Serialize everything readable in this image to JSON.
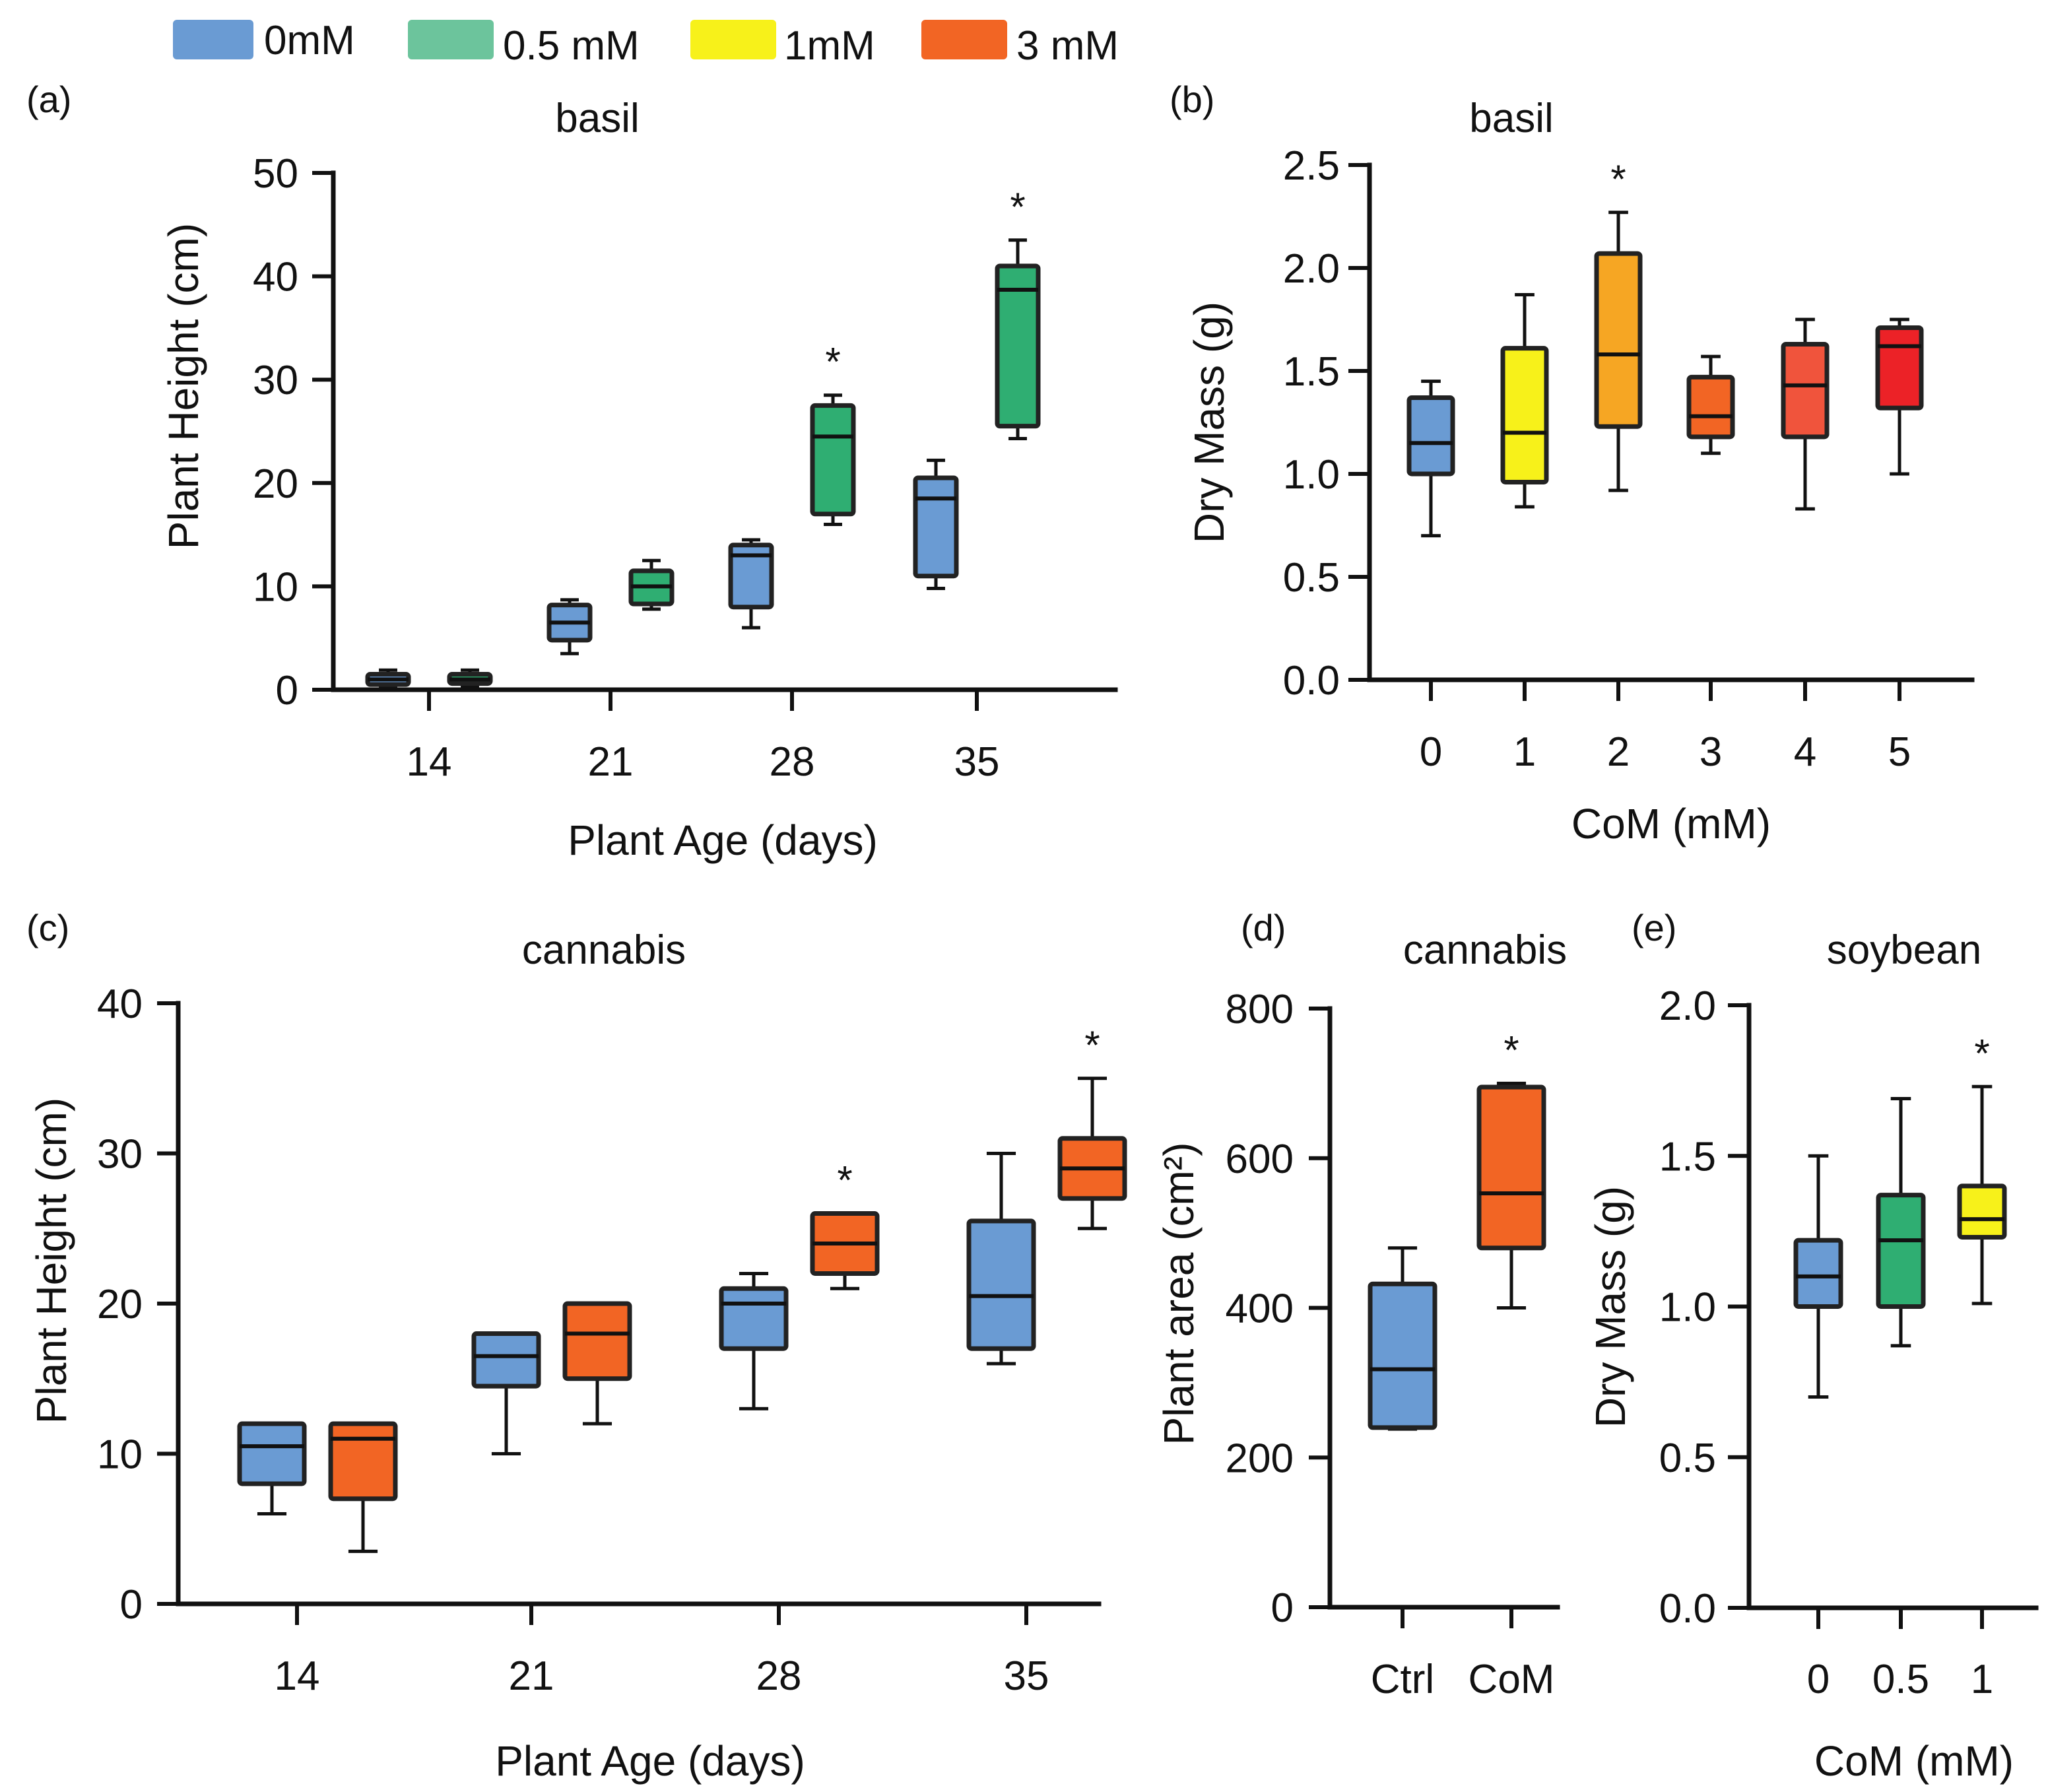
{
  "legend": {
    "items": [
      {
        "label": "0mM",
        "color": "#6a9bd3"
      },
      {
        "label": "0.5 mM",
        "color": "#6cc49c"
      },
      {
        "label": "1mM",
        "color": "#f7f11a"
      },
      {
        "label": "3 mM",
        "color": "#f26524"
      }
    ]
  },
  "chart_data": [
    {
      "panel": "(a)",
      "type": "box",
      "title": "basil",
      "xlabel": "Plant Age (days)",
      "ylabel": "Plant Height (cm)",
      "ylim": [
        0,
        50
      ],
      "yticks": [
        0,
        10,
        20,
        30,
        40,
        50
      ],
      "ytick_labels": [
        "0",
        "10",
        "20",
        "30",
        "40",
        "50"
      ],
      "categories": [
        "14",
        "21",
        "28",
        "35"
      ],
      "series_colors": [
        "#6a9bd3",
        "#2fae72"
      ],
      "boxes": [
        {
          "group": 0,
          "series": 0,
          "min": 0.2,
          "q1": 0.5,
          "median": 1.0,
          "q3": 1.5,
          "max": 1.9
        },
        {
          "group": 0,
          "series": 1,
          "min": 0.3,
          "q1": 0.6,
          "median": 1.0,
          "q3": 1.5,
          "max": 1.9
        },
        {
          "group": 1,
          "series": 0,
          "min": 3.5,
          "q1": 4.8,
          "median": 6.5,
          "q3": 8.2,
          "max": 8.7
        },
        {
          "group": 1,
          "series": 1,
          "min": 7.8,
          "q1": 8.3,
          "median": 10.0,
          "q3": 11.5,
          "max": 12.5
        },
        {
          "group": 2,
          "series": 0,
          "min": 6.0,
          "q1": 8.0,
          "median": 13.0,
          "q3": 14.0,
          "max": 14.5
        },
        {
          "group": 2,
          "series": 1,
          "min": 16.0,
          "q1": 17.0,
          "median": 24.5,
          "q3": 27.5,
          "max": 28.5,
          "star": "*"
        },
        {
          "group": 3,
          "series": 0,
          "min": 9.8,
          "q1": 11.0,
          "median": 18.5,
          "q3": 20.5,
          "max": 22.2
        },
        {
          "group": 3,
          "series": 1,
          "min": 24.3,
          "q1": 25.5,
          "median": 38.7,
          "q3": 41.0,
          "max": 43.5,
          "star": "*"
        }
      ]
    },
    {
      "panel": "(b)",
      "type": "box",
      "title": "basil",
      "xlabel": "CoM (mM)",
      "ylabel": "Dry Mass (g)",
      "ylim": [
        0,
        2.5
      ],
      "yticks": [
        0,
        0.5,
        1.0,
        1.5,
        2.0,
        2.5
      ],
      "ytick_labels": [
        "0.0",
        "0.5",
        "1.0",
        "1.5",
        "2.0",
        "2.5"
      ],
      "categories": [
        "0",
        "1",
        "2",
        "3",
        "4",
        "5"
      ],
      "series_colors": [
        "#6a9bd3"
      ],
      "boxes": [
        {
          "group": 0,
          "color": "#6a9bd3",
          "min": 0.7,
          "q1": 1.0,
          "median": 1.15,
          "q3": 1.37,
          "max": 1.45
        },
        {
          "group": 1,
          "color": "#f7f11a",
          "min": 0.84,
          "q1": 0.96,
          "median": 1.2,
          "q3": 1.61,
          "max": 1.87
        },
        {
          "group": 2,
          "color": "#f6a623",
          "min": 0.92,
          "q1": 1.23,
          "median": 1.58,
          "q3": 2.07,
          "max": 2.27,
          "star": "*"
        },
        {
          "group": 3,
          "color": "#f26524",
          "min": 1.1,
          "q1": 1.18,
          "median": 1.28,
          "q3": 1.47,
          "max": 1.57
        },
        {
          "group": 4,
          "color": "#f0543c",
          "min": 0.83,
          "q1": 1.18,
          "median": 1.43,
          "q3": 1.63,
          "max": 1.75
        },
        {
          "group": 5,
          "color": "#ec2227",
          "min": 1.0,
          "q1": 1.32,
          "median": 1.62,
          "q3": 1.71,
          "max": 1.75
        }
      ]
    },
    {
      "panel": "(c)",
      "type": "box",
      "title": "cannabis",
      "xlabel": "Plant Age (days)",
      "ylabel": "Plant Height (cm)",
      "ylim": [
        0,
        40
      ],
      "yticks": [
        0,
        10,
        20,
        30,
        40
      ],
      "ytick_labels": [
        "0",
        "10",
        "20",
        "30",
        "40"
      ],
      "categories": [
        "14",
        "21",
        "28",
        "35"
      ],
      "series_colors": [
        "#6a9bd3",
        "#f26524"
      ],
      "boxes": [
        {
          "group": 0,
          "series": 0,
          "min": 6.0,
          "q1": 8.0,
          "median": 10.5,
          "q3": 12.0,
          "max": 12.0
        },
        {
          "group": 0,
          "series": 1,
          "min": 3.5,
          "q1": 7.0,
          "median": 11.0,
          "q3": 12.0,
          "max": 12.0
        },
        {
          "group": 1,
          "series": 0,
          "min": 10.0,
          "q1": 14.5,
          "median": 16.5,
          "q3": 18.0,
          "max": 18.0
        },
        {
          "group": 1,
          "series": 1,
          "min": 12.0,
          "q1": 15.0,
          "median": 18.0,
          "q3": 20.0,
          "max": 20.0
        },
        {
          "group": 2,
          "series": 0,
          "min": 13.0,
          "q1": 17.0,
          "median": 20.0,
          "q3": 21.0,
          "max": 22.0
        },
        {
          "group": 2,
          "series": 1,
          "min": 21.0,
          "q1": 22.0,
          "median": 24.0,
          "q3": 26.0,
          "max": 26.0,
          "star": "*"
        },
        {
          "group": 3,
          "series": 0,
          "min": 16.0,
          "q1": 17.0,
          "median": 20.5,
          "q3": 25.5,
          "max": 30.0
        },
        {
          "group": 3,
          "series": 1,
          "min": 25.0,
          "q1": 27.0,
          "median": 29.0,
          "q3": 31.0,
          "max": 35.0,
          "star": "*"
        }
      ]
    },
    {
      "panel": "(d)",
      "type": "box",
      "title": "cannabis",
      "xlabel": "",
      "ylabel": "Plant area (cm²)",
      "ylim": [
        0,
        800
      ],
      "yticks": [
        0,
        200,
        400,
        600,
        800
      ],
      "ytick_labels": [
        "0",
        "200",
        "400",
        "600",
        "800"
      ],
      "categories": [
        "Ctrl",
        "CoM"
      ],
      "boxes": [
        {
          "group": 0,
          "color": "#6a9bd3",
          "min": 238,
          "q1": 240,
          "median": 318,
          "q3": 432,
          "max": 480
        },
        {
          "group": 1,
          "color": "#f26524",
          "min": 400,
          "q1": 480,
          "median": 553,
          "q3": 695,
          "max": 700,
          "star": "*"
        }
      ]
    },
    {
      "panel": "(e)",
      "type": "box",
      "title": "soybean",
      "xlabel": "CoM (mM)",
      "ylabel": "Dry Mass (g)",
      "ylim": [
        0,
        2.0
      ],
      "yticks": [
        0,
        0.5,
        1.0,
        1.5,
        2.0
      ],
      "ytick_labels": [
        "0.0",
        "0.5",
        "1.0",
        "1.5",
        "2.0"
      ],
      "categories": [
        "0",
        "0.5",
        "1"
      ],
      "boxes": [
        {
          "group": 0,
          "color": "#6a9bd3",
          "min": 0.7,
          "q1": 1.0,
          "median": 1.1,
          "q3": 1.22,
          "max": 1.5
        },
        {
          "group": 1,
          "color": "#2fae72",
          "min": 0.87,
          "q1": 1.0,
          "median": 1.22,
          "q3": 1.37,
          "max": 1.69
        },
        {
          "group": 2,
          "color": "#f7f11a",
          "min": 1.01,
          "q1": 1.23,
          "median": 1.29,
          "q3": 1.4,
          "max": 1.73,
          "star": "*"
        }
      ]
    }
  ]
}
